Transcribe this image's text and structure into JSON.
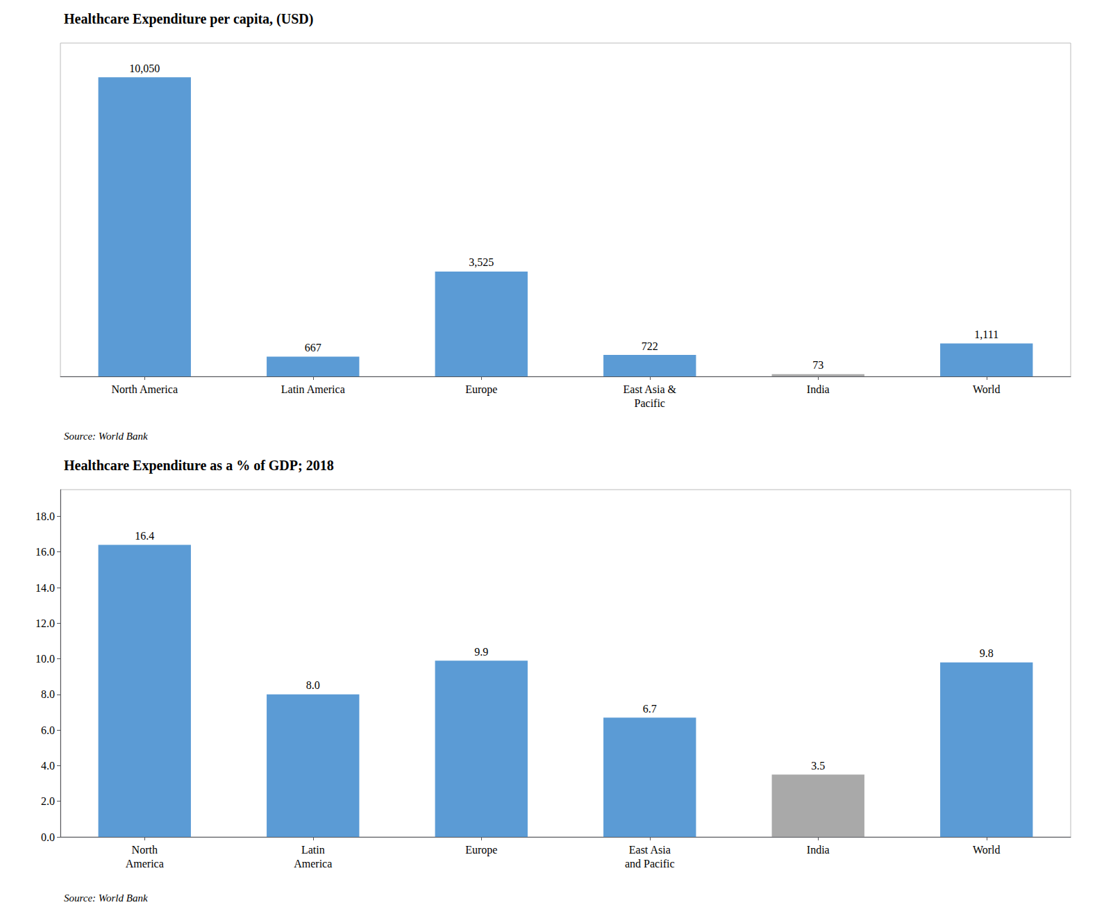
{
  "chart_data": [
    {
      "type": "bar",
      "title": "Healthcare Expenditure per capita, (USD)",
      "categories": [
        "North America",
        "Latin America",
        "Europe",
        "East Asia &\nPacific",
        "India",
        "World"
      ],
      "values": [
        10050,
        667,
        3525,
        722,
        73,
        1111
      ],
      "value_labels": [
        "10,050",
        "667",
        "3,525",
        "722",
        "73",
        "1,111"
      ],
      "colors": [
        "#5b9bd5",
        "#5b9bd5",
        "#5b9bd5",
        "#5b9bd5",
        "#a9a9a9",
        "#5b9bd5"
      ],
      "ylim": [
        0,
        11200
      ],
      "data_labels": true,
      "tick_labels": "x",
      "grid": false,
      "annotations": [
        "Source: World Bank"
      ]
    },
    {
      "type": "bar",
      "title": "Healthcare Expenditure as a % of GDP; 2018",
      "categories": [
        "North\nAmerica",
        "Latin\nAmerica",
        "Europe",
        "East Asia\nand Pacific",
        "India",
        "World"
      ],
      "values": [
        16.4,
        8.0,
        9.9,
        6.7,
        3.5,
        9.8
      ],
      "value_labels": [
        "16.4",
        "8.0",
        "9.9",
        "6.7",
        "3.5",
        "9.8"
      ],
      "colors": [
        "#5b9bd5",
        "#5b9bd5",
        "#5b9bd5",
        "#5b9bd5",
        "#a9a9a9",
        "#5b9bd5"
      ],
      "ylim": [
        0,
        19.5
      ],
      "yticks": [
        {
          "value": 0,
          "label": "0.0"
        },
        {
          "value": 2,
          "label": "2.0"
        },
        {
          "value": 4,
          "label": "4.0"
        },
        {
          "value": 6,
          "label": "6.0"
        },
        {
          "value": 8,
          "label": "8.0"
        },
        {
          "value": 10,
          "label": "10.0"
        },
        {
          "value": 12,
          "label": "12.0"
        },
        {
          "value": 14,
          "label": "14.0"
        },
        {
          "value": 16,
          "label": "16.0"
        },
        {
          "value": 18,
          "label": "18.0"
        }
      ],
      "data_labels": true,
      "grid": false,
      "annotations": [
        "Source: World Bank"
      ]
    }
  ]
}
